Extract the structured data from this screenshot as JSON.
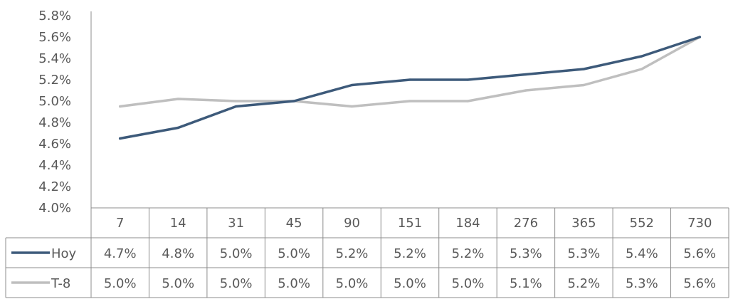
{
  "chart_data": {
    "type": "line",
    "categories": [
      "7",
      "14",
      "31",
      "45",
      "90",
      "151",
      "184",
      "276",
      "365",
      "552",
      "730"
    ],
    "series": [
      {
        "name": "Hoy",
        "color": "#3d5a7a",
        "values": [
          4.65,
          4.75,
          4.95,
          5.0,
          5.15,
          5.2,
          5.2,
          5.25,
          5.3,
          5.42,
          5.6
        ],
        "table_labels": [
          "4.7%",
          "4.8%",
          "5.0%",
          "5.0%",
          "5.2%",
          "5.2%",
          "5.2%",
          "5.3%",
          "5.3%",
          "5.4%",
          "5.6%"
        ]
      },
      {
        "name": "T-8",
        "color": "#bfbfbf",
        "values": [
          4.95,
          5.02,
          5.0,
          5.0,
          4.95,
          5.0,
          5.0,
          5.1,
          5.15,
          5.3,
          5.6
        ],
        "table_labels": [
          "5.0%",
          "5.0%",
          "5.0%",
          "5.0%",
          "5.0%",
          "5.0%",
          "5.0%",
          "5.1%",
          "5.2%",
          "5.3%",
          "5.6%"
        ]
      }
    ],
    "y_ticks": [
      "4.0%",
      "4.2%",
      "4.4%",
      "4.6%",
      "4.8%",
      "5.0%",
      "5.2%",
      "5.4%",
      "5.6%",
      "5.8%"
    ],
    "ylim": [
      4.0,
      5.8
    ],
    "grid": false,
    "legend": "data-table"
  }
}
